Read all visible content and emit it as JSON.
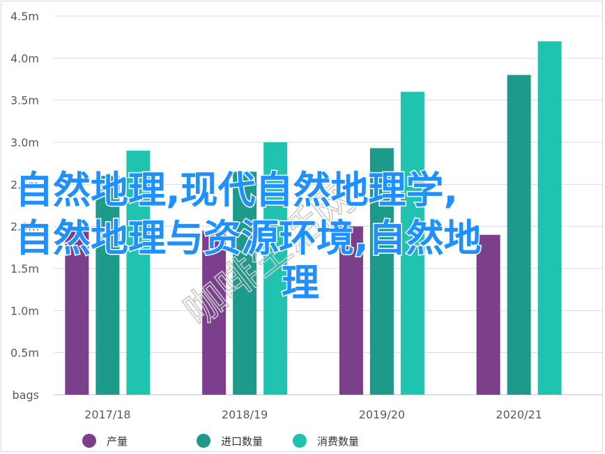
{
  "chart_data": {
    "type": "bar",
    "categories": [
      "2017/18",
      "2018/19",
      "2019/20",
      "2020/21"
    ],
    "series": [
      {
        "name": "产量",
        "color": "#7b3f8c",
        "values": [
          1.95,
          1.95,
          2.0,
          1.9
        ]
      },
      {
        "name": "进口数量",
        "color": "#1e9a8a",
        "values": [
          2.6,
          2.65,
          2.93,
          3.8
        ]
      },
      {
        "name": "消费数量",
        "color": "#20c2b0",
        "values": [
          2.9,
          3.0,
          3.6,
          4.2
        ]
      }
    ],
    "y_ticks": [
      "bags",
      "0.5m",
      "1.0m",
      "1.5m",
      "2.0m",
      "2.5m",
      "3.0m",
      "3.5m",
      "4.0m",
      "4.5m"
    ],
    "ylim": [
      0,
      4.5
    ],
    "grid": true,
    "legend_position": "bottom"
  },
  "overlay": {
    "title_lines": [
      "自然地理,现代自然地理学,",
      "自然地理与资源环境,自然地",
      "理"
    ],
    "watermark": "咖啡生活网"
  }
}
